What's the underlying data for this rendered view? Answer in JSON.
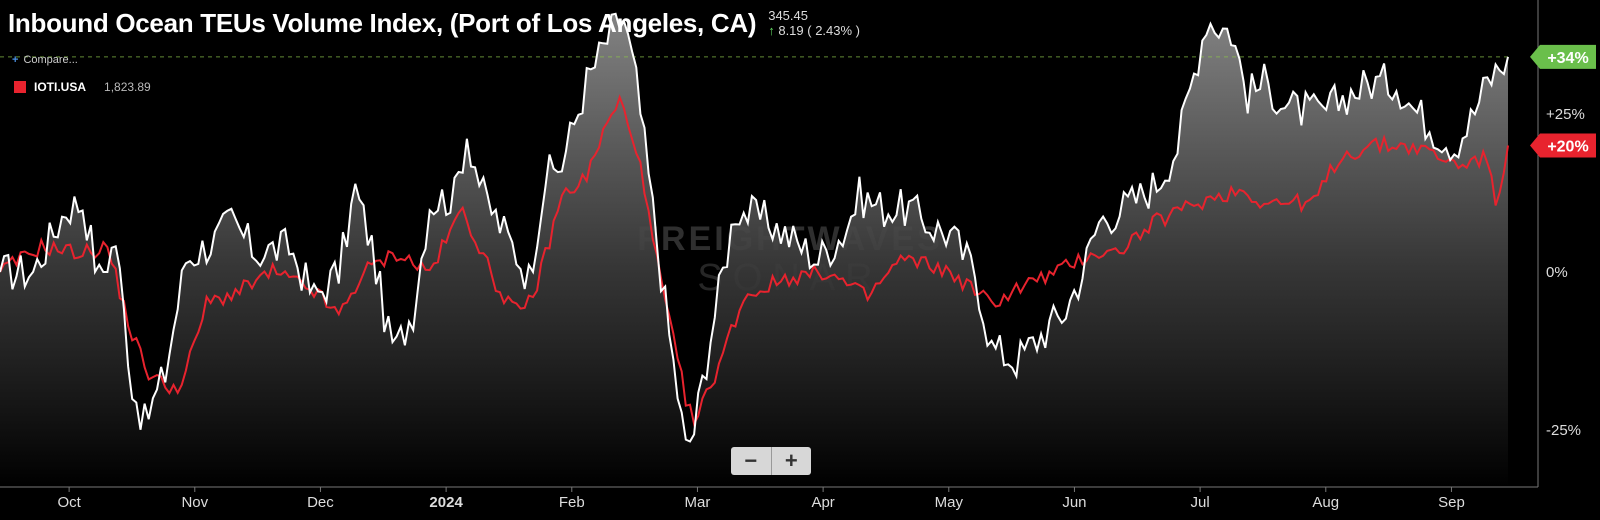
{
  "header": {
    "title": "Inbound Ocean TEUs Volume Index, (Port of Los Angeles, CA)",
    "last_value": "345.45",
    "change": "8.19 ( 2.43% )"
  },
  "compare_label": "Compare...",
  "legend": {
    "symbol": "IOTI.USA",
    "value": "1,823.89",
    "color": "#e8232e"
  },
  "zoom": {
    "minus": "−",
    "plus": "+"
  },
  "watermark": {
    "line1": "FREIGHTWAVES",
    "line2": "SONAR"
  },
  "colors": {
    "background": "#000000",
    "main_series": "#ffffff",
    "compare_series": "#e8232e",
    "up_badge": "#6abf4b"
  },
  "chart_data": {
    "type": "line",
    "x_tick_labels": [
      "Oct",
      "Nov",
      "Dec",
      "2024",
      "Feb",
      "Mar",
      "Apr",
      "May",
      "Jun",
      "Jul",
      "Aug",
      "Sep"
    ],
    "y_tick_labels": [
      "+25%",
      "0%",
      "-25%"
    ],
    "y_ticks": [
      25,
      0,
      -25
    ],
    "ylim": [
      -34,
      43
    ],
    "x_points": 366,
    "badges": [
      {
        "text": "+34%",
        "value": 34,
        "color": "#6abf4b"
      },
      {
        "text": "+20%",
        "value": 20,
        "color": "#e8232e"
      }
    ],
    "reference_line": 34,
    "series": [
      {
        "name": "Inbound Ocean TEUs Volume Index, (Port of Los Angeles, CA)",
        "color": "#ffffff",
        "anchors": [
          [
            0,
            0
          ],
          [
            8,
            0
          ],
          [
            16,
            10
          ],
          [
            20,
            11
          ],
          [
            24,
            -1
          ],
          [
            28,
            5
          ],
          [
            32,
            -18
          ],
          [
            35,
            -24
          ],
          [
            40,
            -16
          ],
          [
            45,
            2
          ],
          [
            52,
            5
          ],
          [
            56,
            8
          ],
          [
            62,
            3
          ],
          [
            70,
            4
          ],
          [
            76,
            -4
          ],
          [
            82,
            0
          ],
          [
            86,
            13
          ],
          [
            90,
            4
          ],
          [
            94,
            -10
          ],
          [
            96,
            -12
          ],
          [
            100,
            -6
          ],
          [
            104,
            11
          ],
          [
            110,
            12
          ],
          [
            113,
            22
          ],
          [
            117,
            12
          ],
          [
            125,
            3
          ],
          [
            128,
            -1
          ],
          [
            132,
            15
          ],
          [
            136,
            17
          ],
          [
            142,
            30
          ],
          [
            148,
            38
          ],
          [
            151,
            40
          ],
          [
            154,
            30
          ],
          [
            158,
            10
          ],
          [
            162,
            -10
          ],
          [
            166,
            -28
          ],
          [
            168,
            -25
          ],
          [
            172,
            -10
          ],
          [
            178,
            10
          ],
          [
            186,
            8
          ],
          [
            192,
            5
          ],
          [
            198,
            2
          ],
          [
            204,
            6
          ],
          [
            208,
            12
          ],
          [
            214,
            10
          ],
          [
            220,
            10
          ],
          [
            226,
            7
          ],
          [
            230,
            6
          ],
          [
            236,
            0
          ],
          [
            240,
            -12
          ],
          [
            246,
            -14
          ],
          [
            252,
            -10
          ],
          [
            258,
            -6
          ],
          [
            262,
            0
          ],
          [
            266,
            8
          ],
          [
            274,
            11
          ],
          [
            280,
            14
          ],
          [
            285,
            20
          ],
          [
            292,
            40
          ],
          [
            298,
            38
          ],
          [
            302,
            28
          ],
          [
            306,
            30
          ],
          [
            312,
            26
          ],
          [
            320,
            25
          ],
          [
            326,
            28
          ],
          [
            332,
            30
          ],
          [
            338,
            30
          ],
          [
            342,
            26
          ],
          [
            348,
            22
          ],
          [
            352,
            20
          ],
          [
            356,
            24
          ],
          [
            360,
            30
          ],
          [
            365,
            34
          ]
        ],
        "noise": 3.2
      },
      {
        "name": "IOTI.USA",
        "color": "#e8232e",
        "anchors": [
          [
            0,
            0
          ],
          [
            10,
            4
          ],
          [
            20,
            3
          ],
          [
            26,
            4
          ],
          [
            32,
            -10
          ],
          [
            36,
            -16
          ],
          [
            40,
            -18
          ],
          [
            44,
            -18
          ],
          [
            50,
            -5
          ],
          [
            58,
            -3
          ],
          [
            66,
            0
          ],
          [
            76,
            -3
          ],
          [
            82,
            -7
          ],
          [
            88,
            0
          ],
          [
            96,
            3
          ],
          [
            104,
            0
          ],
          [
            112,
            10
          ],
          [
            120,
            -2
          ],
          [
            126,
            -7
          ],
          [
            130,
            -2
          ],
          [
            136,
            12
          ],
          [
            142,
            15
          ],
          [
            146,
            22
          ],
          [
            150,
            27
          ],
          [
            154,
            20
          ],
          [
            158,
            5
          ],
          [
            162,
            -8
          ],
          [
            166,
            -20
          ],
          [
            168,
            -24
          ],
          [
            172,
            -18
          ],
          [
            180,
            -4
          ],
          [
            190,
            -1
          ],
          [
            200,
            0
          ],
          [
            210,
            -4
          ],
          [
            218,
            2
          ],
          [
            226,
            1
          ],
          [
            232,
            -1
          ],
          [
            240,
            -5
          ],
          [
            248,
            -2
          ],
          [
            256,
            0
          ],
          [
            264,
            3
          ],
          [
            270,
            3
          ],
          [
            280,
            8
          ],
          [
            290,
            11
          ],
          [
            300,
            13
          ],
          [
            306,
            11
          ],
          [
            310,
            11
          ],
          [
            318,
            11
          ],
          [
            324,
            18
          ],
          [
            332,
            20
          ],
          [
            340,
            20
          ],
          [
            346,
            19
          ],
          [
            352,
            17
          ],
          [
            360,
            18
          ],
          [
            362,
            10
          ],
          [
            365,
            20
          ]
        ],
        "noise": 1.3
      }
    ]
  }
}
